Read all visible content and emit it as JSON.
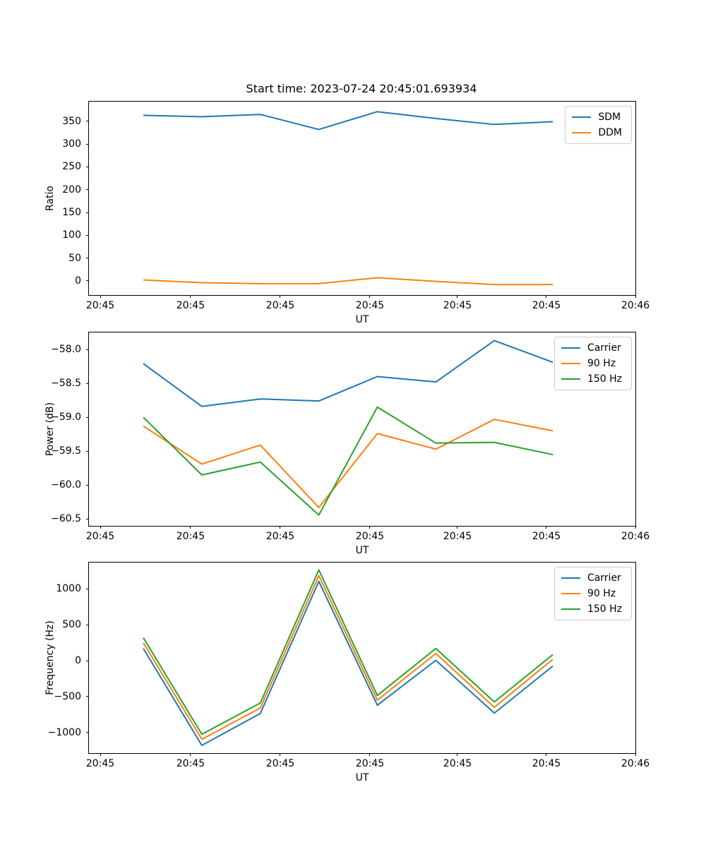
{
  "title": "Start time: 2023-07-24 20:45:01.693934",
  "colors": {
    "blue": "#1f77b4",
    "orange": "#ff7f0e",
    "green": "#2ca02c"
  },
  "chart_data": [
    {
      "type": "line",
      "ylabel": "Ratio",
      "xlabel": "UT",
      "ylim": [
        -31,
        393
      ],
      "grid": false,
      "legend_position": "upper right",
      "yticks": [
        0,
        50,
        100,
        150,
        200,
        250,
        300,
        350
      ],
      "ytick_labels": [
        "0",
        "50",
        "100",
        "150",
        "200",
        "250",
        "300",
        "350"
      ],
      "xtick_labels": [
        "20:45",
        "20:45",
        "20:45",
        "20:45",
        "20:45",
        "20:45",
        "20:46"
      ],
      "series": [
        {
          "name": "SDM",
          "color": "#1f77b4",
          "values": [
            363,
            360,
            365,
            332,
            371,
            356,
            343,
            349
          ]
        },
        {
          "name": "DDM",
          "color": "#ff7f0e",
          "values": [
            2,
            -4,
            -6,
            -6,
            7,
            -1,
            -8,
            -8
          ]
        }
      ]
    },
    {
      "type": "line",
      "ylabel": "Power (dB)",
      "xlabel": "UT",
      "ylim": [
        -60.6,
        -57.75
      ],
      "grid": false,
      "legend_position": "upper right",
      "yticks": [
        -58.0,
        -58.5,
        -59.0,
        -59.5,
        -60.0,
        -60.5
      ],
      "ytick_labels": [
        "−58.0",
        "−58.5",
        "−59.0",
        "−59.5",
        "−60.0",
        "−60.5"
      ],
      "xtick_labels": [
        "20:45",
        "20:45",
        "20:45",
        "20:45",
        "20:45",
        "20:45",
        "20:46"
      ],
      "series": [
        {
          "name": "Carrier",
          "color": "#1f77b4",
          "values": [
            -58.21,
            -58.84,
            -58.73,
            -58.76,
            -58.4,
            -58.48,
            -57.87,
            -58.19
          ]
        },
        {
          "name": "90 Hz",
          "color": "#ff7f0e",
          "values": [
            -59.13,
            -59.69,
            -59.41,
            -60.33,
            -59.24,
            -59.47,
            -59.03,
            -59.2
          ]
        },
        {
          "name": "150 Hz",
          "color": "#2ca02c",
          "values": [
            -59.0,
            -59.85,
            -59.66,
            -60.44,
            -58.85,
            -59.38,
            -59.37,
            -59.55
          ]
        }
      ]
    },
    {
      "type": "line",
      "ylabel": "Frequency (Hz)",
      "xlabel": "UT",
      "ylim": [
        -1288,
        1367
      ],
      "grid": false,
      "legend_position": "upper right",
      "yticks": [
        -1000,
        -500,
        0,
        500,
        1000
      ],
      "ytick_labels": [
        "−1000",
        "−500",
        "0",
        "500",
        "1000"
      ],
      "xtick_labels": [
        "20:45",
        "20:45",
        "20:45",
        "20:45",
        "20:45",
        "20:45",
        "20:46"
      ],
      "series": [
        {
          "name": "Carrier",
          "color": "#1f77b4",
          "values": [
            170,
            -1180,
            -735,
            1105,
            -620,
            5,
            -730,
            -75
          ]
        },
        {
          "name": "90 Hz",
          "color": "#ff7f0e",
          "values": [
            250,
            -1095,
            -660,
            1185,
            -550,
            100,
            -650,
            20
          ]
        },
        {
          "name": "150 Hz",
          "color": "#2ca02c",
          "values": [
            320,
            -1025,
            -590,
            1265,
            -485,
            170,
            -575,
            85
          ]
        }
      ]
    }
  ]
}
